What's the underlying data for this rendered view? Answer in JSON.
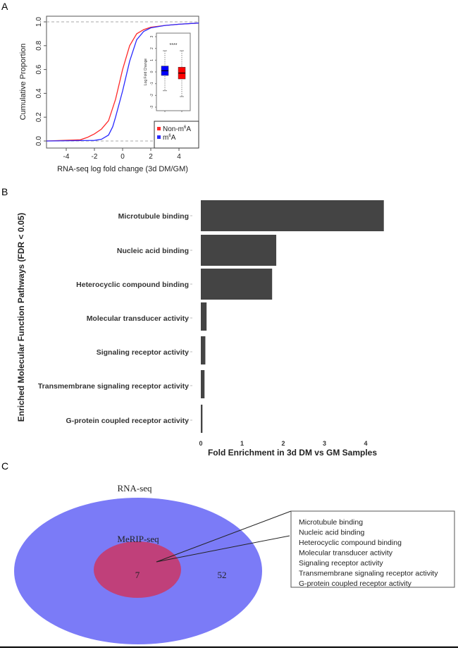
{
  "panels": {
    "a": "A",
    "b": "B",
    "c": "C"
  },
  "chart_data": [
    {
      "type": "line",
      "panel": "A",
      "xlabel": "RNA-seq log fold change (3d DM/GM)",
      "ylabel": "Cumulative Proportion",
      "xlim": [
        -5.4,
        5.4
      ],
      "ylim": [
        0,
        1
      ],
      "xticks": [
        "-4",
        "-2",
        "0",
        "2",
        "4"
      ],
      "xtick_values": [
        -4,
        -2,
        0,
        2,
        4
      ],
      "yticks": [
        "0.0",
        "0.2",
        "0.4",
        "0.6",
        "0.8",
        "1.0"
      ],
      "ytick_values": [
        0,
        0.2,
        0.4,
        0.6,
        0.8,
        1.0
      ],
      "reference_lines": [
        0,
        1
      ],
      "legend_position": "bottom-right",
      "series": [
        {
          "name": "Non-m6A",
          "legend_label": "Non-m",
          "legend_sup": "6",
          "legend_suffix": "A",
          "color": "#ff2a2a",
          "x": [
            -5.4,
            -3,
            -2.5,
            -2,
            -1.5,
            -1,
            -0.5,
            0,
            0.5,
            1,
            1.5,
            2,
            3,
            4,
            5.4
          ],
          "y": [
            0,
            0.01,
            0.03,
            0.06,
            0.1,
            0.17,
            0.35,
            0.6,
            0.8,
            0.9,
            0.935,
            0.955,
            0.97,
            0.98,
            0.99
          ]
        },
        {
          "name": "m6A",
          "legend_label": "m",
          "legend_sup": "6",
          "legend_suffix": "A",
          "color": "#2a2aff",
          "x": [
            -5.4,
            -2,
            -1.5,
            -1,
            -0.7,
            -0.5,
            0,
            0.5,
            1,
            1.5,
            2,
            3,
            4,
            5.4
          ],
          "y": [
            0,
            0.005,
            0.015,
            0.05,
            0.12,
            0.2,
            0.42,
            0.67,
            0.85,
            0.92,
            0.95,
            0.97,
            0.98,
            0.99
          ]
        }
      ],
      "inset": {
        "type": "boxplot",
        "ylabel": "Log Fold Change",
        "ylim": [
          -3.3,
          3.3
        ],
        "yticks": [
          "-3",
          "-2",
          "-1",
          "0",
          "1",
          "2",
          "3"
        ],
        "ytick_values": [
          -3,
          -2,
          -1,
          0,
          1,
          2,
          3
        ],
        "significance": "****",
        "boxes": [
          {
            "name": "m6A",
            "color": "#0000ff",
            "whisker_low": -1.6,
            "q1": -0.3,
            "median": 0.1,
            "q3": 0.5,
            "whisker_high": 1.8
          },
          {
            "name": "Non-m6A",
            "color": "#ff0000",
            "whisker_low": -2.1,
            "q1": -0.6,
            "median": -0.1,
            "q3": 0.4,
            "whisker_high": 1.8
          }
        ]
      }
    },
    {
      "type": "bar",
      "panel": "B",
      "orientation": "horizontal",
      "ylabel": "Enriched Molecular Function Pathways (FDR < 0.05)",
      "xlabel": "Fold Enrichment in 3d DM vs GM Samples",
      "xlim": [
        0,
        4.6
      ],
      "xticks": [
        "0",
        "1",
        "2",
        "3",
        "4"
      ],
      "xtick_values": [
        0,
        1,
        2,
        3,
        4
      ],
      "bar_color": "#444444",
      "categories": [
        "Microtubule binding",
        "Nucleic acid binding",
        "Heterocyclic compound binding",
        "Molecular transducer activity",
        "Signaling receptor activity",
        "Transmembrane signaling receptor activity",
        "G-protein coupled receptor activity"
      ],
      "values": [
        4.44,
        1.83,
        1.73,
        0.14,
        0.11,
        0.09,
        0.04
      ]
    },
    {
      "type": "venn",
      "panel": "C",
      "sets": [
        {
          "label": "RNA-seq",
          "color": "#7b7bf7",
          "exclusive_count": "52"
        },
        {
          "label": "MeRIP-seq",
          "color": "#c0407a",
          "count": "7"
        }
      ],
      "callout_items": [
        "Microtubule binding",
        "Nucleic acid binding",
        "Heterocyclic compound binding",
        "Molecular transducer activity",
        "Signaling receptor activity",
        "Transmembrane signaling receptor activity",
        "G-protein coupled receptor activity"
      ]
    }
  ]
}
